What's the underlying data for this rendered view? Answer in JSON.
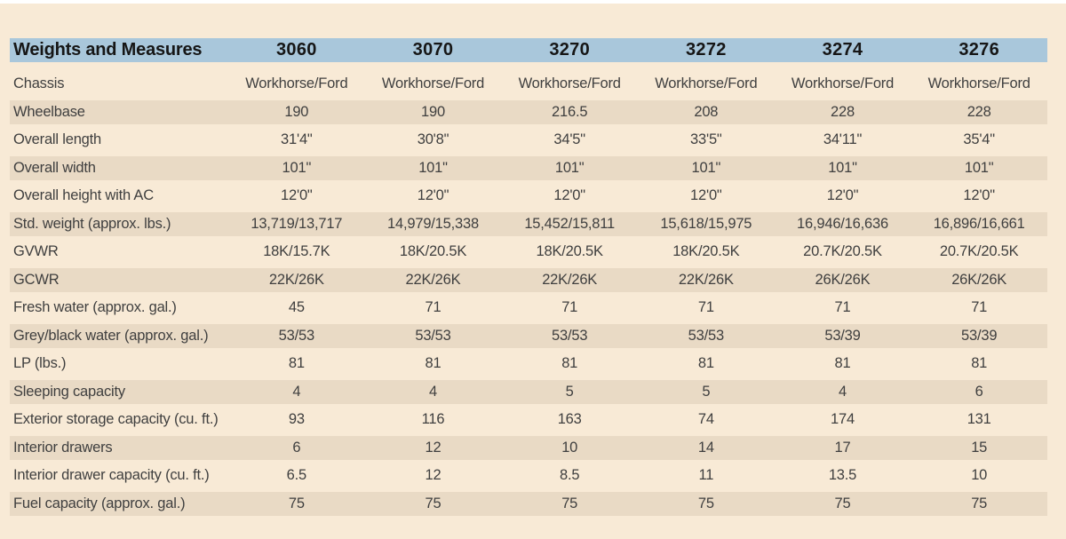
{
  "page": {
    "background": "#f8ead6",
    "top_strip_color": "#ffffff"
  },
  "table": {
    "title": "Weights and Measures",
    "header_bg": "#a9c7db",
    "stripe_bg": "#e9dac5",
    "models": [
      "3060",
      "3070",
      "3270",
      "3272",
      "3274",
      "3276"
    ],
    "rows": [
      {
        "label": "Chassis",
        "values": [
          "Workhorse/Ford",
          "Workhorse/Ford",
          "Workhorse/Ford",
          "Workhorse/Ford",
          "Workhorse/Ford",
          "Workhorse/Ford"
        ]
      },
      {
        "label": "Wheelbase",
        "values": [
          "190",
          "190",
          "216.5",
          "208",
          "228",
          "228"
        ]
      },
      {
        "label": "Overall length",
        "values": [
          "31'4\"",
          "30'8\"",
          "34'5\"",
          "33'5\"",
          "34'11\"",
          "35'4\""
        ]
      },
      {
        "label": "Overall width",
        "values": [
          "101\"",
          "101\"",
          "101\"",
          "101\"",
          "101\"",
          "101\""
        ]
      },
      {
        "label": "Overall height with AC",
        "values": [
          "12'0\"",
          "12'0\"",
          "12'0\"",
          "12'0\"",
          "12'0\"",
          "12'0\""
        ]
      },
      {
        "label": "Std. weight (approx. lbs.)",
        "values": [
          "13,719/13,717",
          "14,979/15,338",
          "15,452/15,811",
          "15,618/15,975",
          "16,946/16,636",
          "16,896/16,661"
        ]
      },
      {
        "label": "GVWR",
        "values": [
          "18K/15.7K",
          "18K/20.5K",
          "18K/20.5K",
          "18K/20.5K",
          "20.7K/20.5K",
          "20.7K/20.5K"
        ]
      },
      {
        "label": "GCWR",
        "values": [
          "22K/26K",
          "22K/26K",
          "22K/26K",
          "22K/26K",
          "26K/26K",
          "26K/26K"
        ]
      },
      {
        "label": "Fresh water (approx. gal.)",
        "values": [
          "45",
          "71",
          "71",
          "71",
          "71",
          "71"
        ]
      },
      {
        "label": "Grey/black water (approx. gal.)",
        "values": [
          "53/53",
          "53/53",
          "53/53",
          "53/53",
          "53/39",
          "53/39"
        ]
      },
      {
        "label": "LP (lbs.)",
        "values": [
          "81",
          "81",
          "81",
          "81",
          "81",
          "81"
        ]
      },
      {
        "label": "Sleeping capacity",
        "values": [
          "4",
          "4",
          "5",
          "5",
          "4",
          "6"
        ]
      },
      {
        "label": "Exterior storage capacity (cu. ft.)",
        "values": [
          "93",
          "116",
          "163",
          "74",
          "174",
          "131"
        ]
      },
      {
        "label": "Interior drawers",
        "values": [
          "6",
          "12",
          "10",
          "14",
          "17",
          "15"
        ]
      },
      {
        "label": "Interior drawer capacity (cu. ft.)",
        "values": [
          "6.5",
          "12",
          "8.5",
          "11",
          "13.5",
          "10"
        ]
      },
      {
        "label": "Fuel capacity (approx. gal.)",
        "values": [
          "75",
          "75",
          "75",
          "75",
          "75",
          "75"
        ]
      }
    ]
  }
}
